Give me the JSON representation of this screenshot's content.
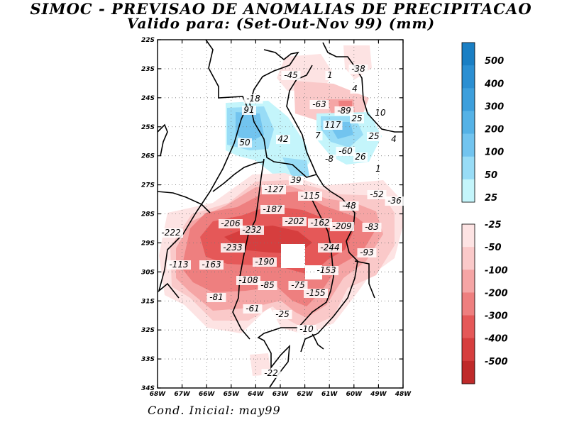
{
  "title_line1": "SIMOC - PREVISAO DE ANOMALIAS DE PRECIPITACAO",
  "title_line2": "Valido para: (Set-Out-Nov 99) (mm)",
  "footer": "Cond. Inicial: may99",
  "lat_labels": [
    "22S",
    "23S",
    "24S",
    "25S",
    "26S",
    "27S",
    "28S",
    "29S",
    "30S",
    "31S",
    "32S",
    "33S",
    "34S"
  ],
  "lon_labels": [
    "68W",
    "67W",
    "66W",
    "65W",
    "64W",
    "63W",
    "62W",
    "61W",
    "60W",
    "49W",
    "48W"
  ],
  "legend_positive": [
    {
      "label": "500",
      "color": "#1a7fc4"
    },
    {
      "label": "400",
      "color": "#2b8fd2"
    },
    {
      "label": "300",
      "color": "#3d9fdc"
    },
    {
      "label": "200",
      "color": "#55b2e6"
    },
    {
      "label": "100",
      "color": "#72c4ef"
    },
    {
      "label": "50",
      "color": "#98dcf6"
    },
    {
      "label": "25",
      "color": "#c4f5fb"
    }
  ],
  "legend_negative": [
    {
      "label": "-25",
      "color": "#fde3e3"
    },
    {
      "label": "-50",
      "color": "#fac9c9"
    },
    {
      "label": "-100",
      "color": "#f5a5a5"
    },
    {
      "label": "-200",
      "color": "#ee7f7f"
    },
    {
      "label": "-300",
      "color": "#e55858"
    },
    {
      "label": "-400",
      "color": "#d63e3e"
    },
    {
      "label": "-500",
      "color": "#bf2a2a"
    }
  ],
  "contour_labels": [
    "-45",
    "1",
    "-38",
    "4",
    "-18",
    "91",
    "-63",
    "-89",
    "10",
    "25",
    "117",
    "7",
    "25",
    "4",
    "42",
    "50",
    "-8",
    "-60",
    "26",
    "1",
    "39",
    "-127",
    "-115",
    "-52",
    "-36",
    "-187",
    "-48",
    "-206",
    "-202",
    "-162",
    "-209",
    "-83",
    "-222",
    "-232",
    "-233",
    "-244",
    "-93",
    "-113",
    "-163",
    "-190",
    "-153",
    "-108",
    "-85",
    "-75",
    "-155",
    "-81",
    "-61",
    "-25",
    "-10",
    "-22"
  ]
}
